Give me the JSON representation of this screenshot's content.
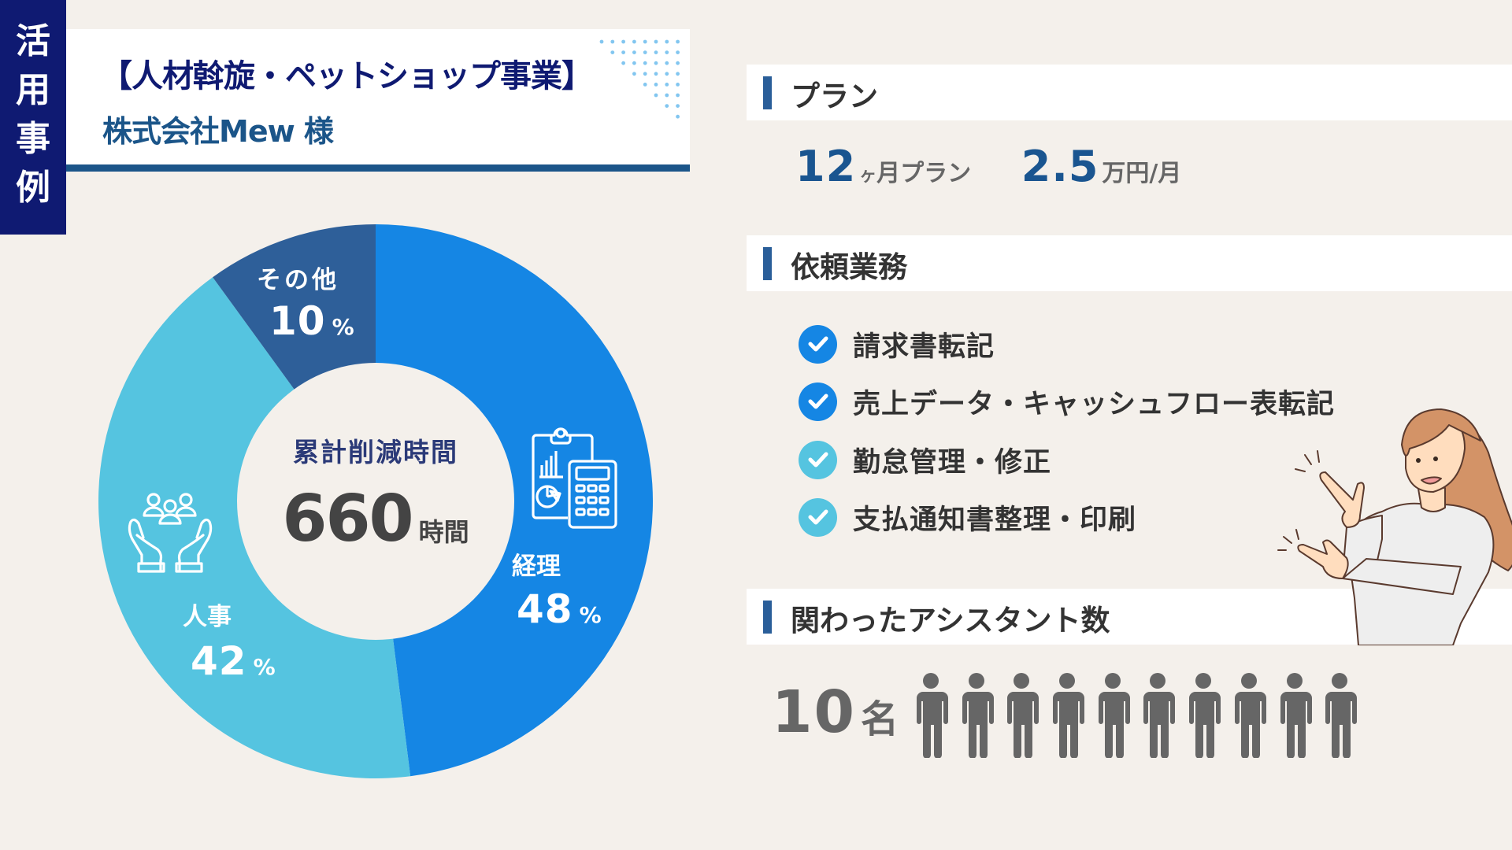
{
  "sidebar": {
    "label_chars": [
      "活",
      "用",
      "事",
      "例"
    ]
  },
  "header": {
    "title": "【人材斡旋・ペットショップ事業】",
    "company": "株式会社Mew 様"
  },
  "colors": {
    "navy": "#0F1A72",
    "accent_blue": "#1A5590",
    "segment_main": "#1586E4",
    "segment_light": "#55C4E0",
    "segment_dark": "#2E5F99",
    "check_dark": "#1586E4",
    "check_light": "#55C4E0",
    "person_gray": "#666666"
  },
  "chart_data": {
    "type": "pie",
    "donut": true,
    "title": "累計削減時間",
    "center_value": "660",
    "center_unit": "時間",
    "slices": [
      {
        "label": "経理",
        "value": 48,
        "display": "48",
        "unit": "%",
        "color": "#1586E4",
        "icon": "accounting-calculator-icon"
      },
      {
        "label": "人事",
        "value": 42,
        "display": "42",
        "unit": "%",
        "color": "#55C4E0",
        "icon": "hr-people-hands-icon"
      },
      {
        "label": "その他",
        "value": 10,
        "display": "10",
        "unit": "%",
        "color": "#2E5F99",
        "icon": ""
      }
    ],
    "start": "top",
    "direction": "clockwise"
  },
  "plan": {
    "section_title": "プラン",
    "months": "12",
    "months_unit": "ヶ月プラン",
    "months_unit_small": "ヶ",
    "months_unit_rest": "月プラン",
    "price": "2.5",
    "price_unit": "万円/月"
  },
  "tasks": {
    "section_title": "依頼業務",
    "items": [
      {
        "label": "請求書転記",
        "check_color": "#1586E4"
      },
      {
        "label": "売上データ・キャッシュフロー表転記",
        "check_color": "#1586E4"
      },
      {
        "label": "勤怠管理・修正",
        "check_color": "#55C4E0"
      },
      {
        "label": "支払通知書整理・印刷",
        "check_color": "#55C4E0"
      }
    ]
  },
  "assistants": {
    "section_title": "関わったアシスタント数",
    "count": "10",
    "unit": "名",
    "icon_count": 10,
    "icon": "person-icon"
  },
  "illustration": {
    "icon": "woman-pointing-illustration"
  }
}
